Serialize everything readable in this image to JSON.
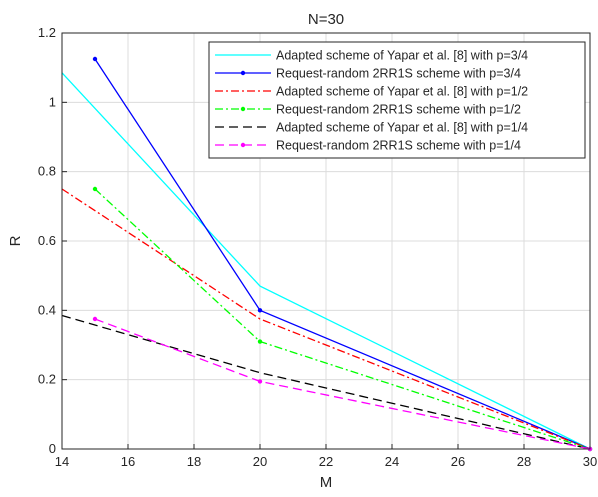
{
  "chart_data": {
    "type": "line",
    "title": "N=30",
    "xlabel": "M",
    "ylabel": "R",
    "xlim": [
      14,
      30
    ],
    "ylim": [
      0,
      1.2
    ],
    "xticks": [
      14,
      16,
      18,
      20,
      22,
      24,
      26,
      28,
      30
    ],
    "yticks": [
      0,
      0.2,
      0.4,
      0.6,
      0.8,
      1,
      1.2
    ],
    "xtick_labels": [
      "14",
      "16",
      "18",
      "20",
      "22",
      "24",
      "26",
      "28",
      "30"
    ],
    "ytick_labels": [
      "0",
      "0.2",
      "0.4",
      "0.6",
      "0.8",
      "1",
      "1.2"
    ],
    "grid": true,
    "legend_position": "top-right",
    "series": [
      {
        "name": "Adapted scheme of Yapar et al. [8] with p=3/4",
        "color": "#00ffff",
        "dash": "solid",
        "marker": false,
        "x": [
          14,
          20,
          30
        ],
        "y": [
          1.085,
          0.47,
          0
        ]
      },
      {
        "name": "Request-random 2RR1S scheme with p=3/4",
        "color": "#0000ff",
        "dash": "solid",
        "marker": true,
        "x": [
          15,
          20,
          30
        ],
        "y": [
          1.125,
          0.4,
          0
        ]
      },
      {
        "name": "Adapted scheme of Yapar et al. [8] with p=1/2",
        "color": "#ff0000",
        "dash": "dashdot",
        "marker": false,
        "x": [
          14,
          20,
          30
        ],
        "y": [
          0.75,
          0.375,
          0
        ]
      },
      {
        "name": "Request-random 2RR1S scheme with p=1/2",
        "color": "#00ff00",
        "dash": "dashdot",
        "marker": true,
        "x": [
          15,
          20,
          30
        ],
        "y": [
          0.75,
          0.31,
          0
        ]
      },
      {
        "name": "Adapted scheme of Yapar et al. [8] with p=1/4",
        "color": "#000000",
        "dash": "dashed",
        "marker": false,
        "x": [
          14,
          20,
          30
        ],
        "y": [
          0.385,
          0.22,
          0
        ]
      },
      {
        "name": "Request-random 2RR1S scheme with p=1/4",
        "color": "#ff00ff",
        "dash": "dashed",
        "marker": true,
        "x": [
          15,
          20,
          30
        ],
        "y": [
          0.375,
          0.195,
          0
        ]
      }
    ]
  }
}
